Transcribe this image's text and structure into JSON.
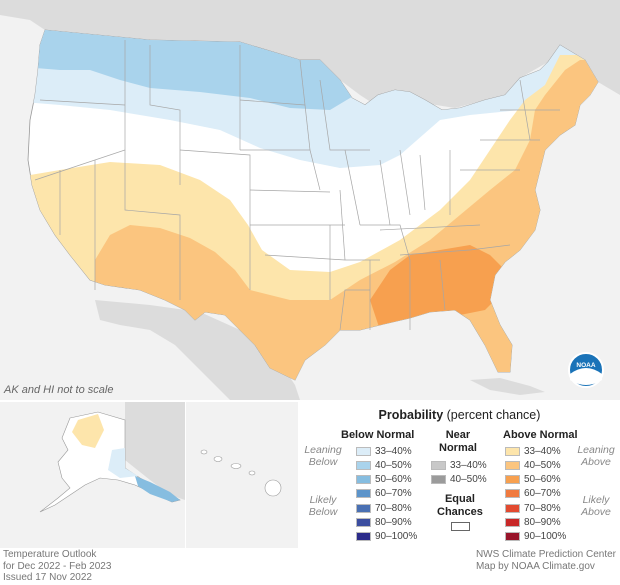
{
  "map": {
    "note": "AK and HI not to scale",
    "footer_left": [
      "Temperature Outlook",
      "for Dec 2022 - Feb 2023",
      "Issued 17 Nov 2022"
    ],
    "footer_right": [
      "NWS Climate Prediction Center",
      "Map by NOAA Climate.gov"
    ],
    "colors": {
      "ocean": "#ffffff",
      "land_other": "#dcdcdc",
      "equal": "#ffffff",
      "below_33": "#dcedf8",
      "below_40": "#a9d3ec",
      "above_33": "#fde5ab",
      "above_40": "#fbc57f",
      "above_50": "#f7a04f",
      "border": "#a6a6a6"
    }
  },
  "legend": {
    "title_bold": "Probability",
    "title_rest": "(percent chance)",
    "below_header": "Below Normal",
    "near_header": "Near\nNormal",
    "above_header": "Above Normal",
    "leaning_below": "Leaning\nBelow",
    "likely_below": "Likely\nBelow",
    "leaning_above": "Leaning\nAbove",
    "likely_above": "Likely\nAbove",
    "equal_chances": "Equal\nChances",
    "below": [
      {
        "label": "33–40%",
        "color": "#dcedf8"
      },
      {
        "label": "40–50%",
        "color": "#a9d3ec"
      },
      {
        "label": "50–60%",
        "color": "#86bde0"
      },
      {
        "label": "60–70%",
        "color": "#5c94ca"
      },
      {
        "label": "70–80%",
        "color": "#4a70b3"
      },
      {
        "label": "80–90%",
        "color": "#3b4ea0"
      },
      {
        "label": "90–100%",
        "color": "#2b2b8a"
      }
    ],
    "near": [
      {
        "label": "33–40%",
        "color": "#c8c8c8"
      },
      {
        "label": "40–50%",
        "color": "#9b9b9b"
      }
    ],
    "above": [
      {
        "label": "33–40%",
        "color": "#fde5ab"
      },
      {
        "label": "40–50%",
        "color": "#fbc57f"
      },
      {
        "label": "50–60%",
        "color": "#f7a04f"
      },
      {
        "label": "60–70%",
        "color": "#f07a3f"
      },
      {
        "label": "70–80%",
        "color": "#e24a30"
      },
      {
        "label": "80–90%",
        "color": "#c82828"
      },
      {
        "label": "90–100%",
        "color": "#98142a"
      }
    ]
  }
}
